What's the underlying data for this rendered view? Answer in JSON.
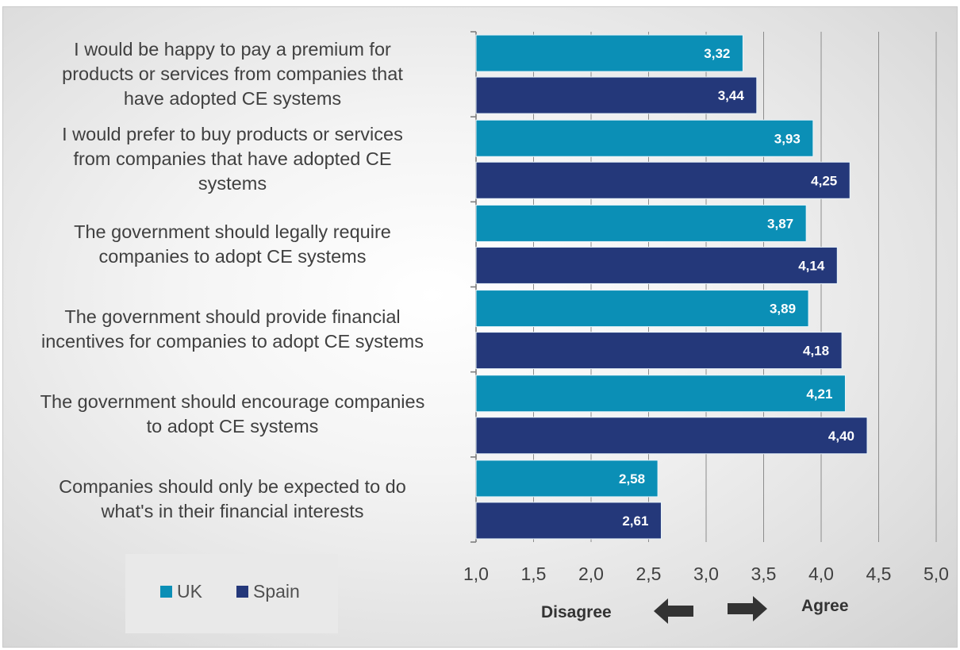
{
  "chart_data": {
    "type": "bar",
    "orientation": "horizontal",
    "categories": [
      "I would be happy to pay a premium for products or services from companies that have adopted CE systems",
      "I would prefer to buy products or services from companies that have adopted CE systems",
      "The government should legally require companies to adopt CE systems",
      "The government should provide financial incentives for companies to adopt CE systems",
      "The government should encourage companies to adopt CE systems",
      "Companies should only be expected to do what's in their financial interests"
    ],
    "series": [
      {
        "name": "UK",
        "color": "#0b8fb6",
        "values": [
          3.32,
          3.93,
          3.87,
          3.89,
          4.21,
          2.58
        ],
        "value_labels": [
          "3,32",
          "3,93",
          "3,87",
          "3,89",
          "4,21",
          "2,58"
        ]
      },
      {
        "name": "Spain",
        "color": "#24387a",
        "values": [
          3.44,
          4.25,
          4.14,
          4.18,
          4.4,
          2.61
        ],
        "value_labels": [
          "3,44",
          "4,25",
          "4,14",
          "4,18",
          "4,40",
          "2,61"
        ]
      }
    ],
    "xlim": [
      1.0,
      5.0
    ],
    "x_ticks": [
      "1,0",
      "1,5",
      "2,0",
      "2,5",
      "3,0",
      "3,5",
      "4,0",
      "4,5",
      "5,0"
    ],
    "grid": true,
    "legend_position": "bottom-left",
    "direction_labels": {
      "left": "Disagree",
      "right": "Agree"
    }
  },
  "category_lines": [
    [
      "I would be happy to pay a premium for",
      "products or services from companies that",
      "have adopted CE systems"
    ],
    [
      "I would prefer to buy products or services",
      "from companies that have adopted CE",
      "systems"
    ],
    [
      "The government should legally require",
      "companies to adopt CE systems"
    ],
    [
      "The government should provide financial",
      "incentives for companies to adopt CE systems"
    ],
    [
      "The government should encourage companies",
      "to adopt CE systems"
    ],
    [
      "Companies should only be expected to do",
      "what's in their financial interests"
    ]
  ]
}
